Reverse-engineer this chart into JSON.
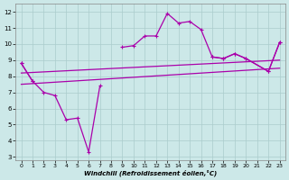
{
  "xlabel": "Windchill (Refroidissement éolien,°C)",
  "xlim": [
    -0.5,
    23.5
  ],
  "ylim": [
    2.8,
    12.5
  ],
  "xticks": [
    0,
    1,
    2,
    3,
    4,
    5,
    6,
    7,
    8,
    9,
    10,
    11,
    12,
    13,
    14,
    15,
    16,
    17,
    18,
    19,
    20,
    21,
    22,
    23
  ],
  "yticks": [
    3,
    4,
    5,
    6,
    7,
    8,
    9,
    10,
    11,
    12
  ],
  "bg_color": "#cce8e8",
  "grid_color": "#aacccc",
  "line_color": "#aa00aa",
  "line1_x": [
    0,
    1,
    2,
    3,
    4,
    5,
    6,
    7,
    17,
    18,
    19,
    20,
    22,
    23
  ],
  "line1_y": [
    8.8,
    7.7,
    7.0,
    6.8,
    5.3,
    5.4,
    3.3,
    7.4,
    9.2,
    9.1,
    9.4,
    9.1,
    8.3,
    10.1
  ],
  "line2_x": [
    0,
    1,
    9,
    10,
    11,
    12,
    13,
    14,
    15,
    16,
    17,
    18,
    19,
    20,
    22,
    23
  ],
  "line2_y": [
    8.8,
    7.7,
    9.8,
    9.9,
    10.5,
    10.5,
    11.9,
    11.3,
    11.4,
    10.9,
    9.2,
    9.1,
    9.4,
    9.1,
    8.3,
    10.1
  ],
  "line3_x": [
    0,
    23
  ],
  "line3_y": [
    8.2,
    9.0
  ],
  "line4_x": [
    0,
    23
  ],
  "line4_y": [
    7.5,
    8.5
  ]
}
